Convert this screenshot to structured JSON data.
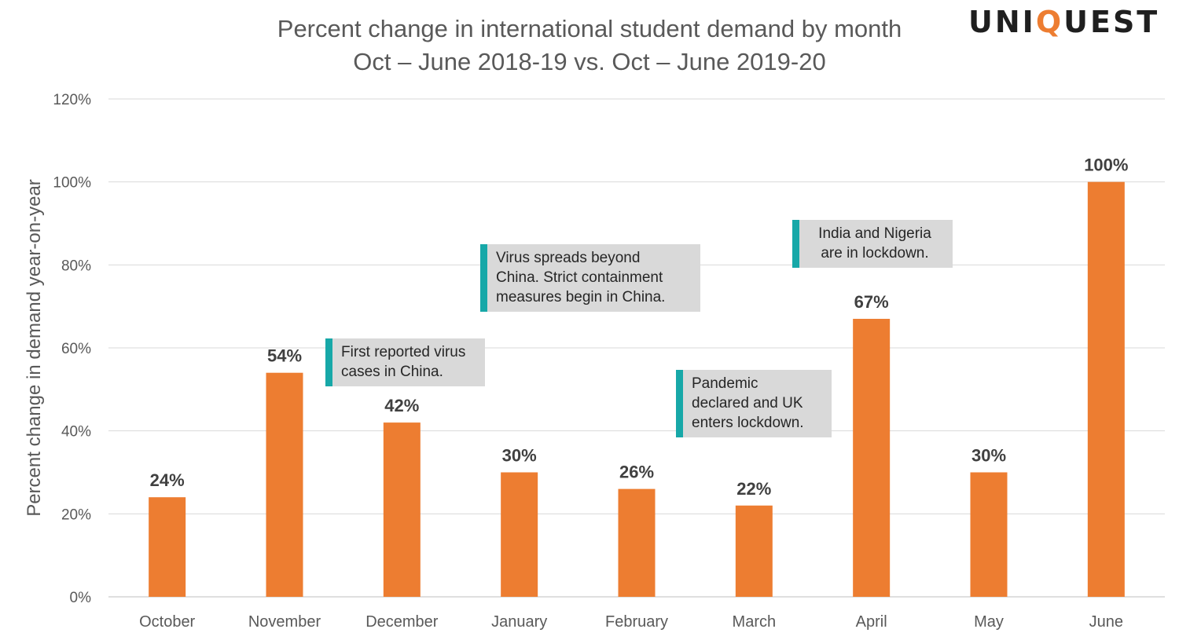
{
  "title_line1": "Percent change in international student demand by month",
  "title_line2": "Oct – June 2018-19 vs. Oct – June 2019-20",
  "logo": {
    "pre": "UNI",
    "q": "Q",
    "post": "UEST"
  },
  "chart_data": {
    "type": "bar",
    "categories": [
      "October",
      "November",
      "December",
      "January",
      "February",
      "March",
      "April",
      "May",
      "June"
    ],
    "values": [
      24,
      54,
      42,
      30,
      26,
      22,
      67,
      30,
      100
    ],
    "data_labels": [
      "24%",
      "54%",
      "42%",
      "30%",
      "26%",
      "22%",
      "67%",
      "30%",
      "100%"
    ],
    "ylabel": "Percent change in demand year-on-year",
    "ylim": [
      0,
      120
    ],
    "yticks": [
      "0%",
      "20%",
      "40%",
      "60%",
      "80%",
      "100%",
      "120%"
    ],
    "grid": true,
    "bar_color": "#ED7D31",
    "annotations": [
      {
        "lines": [
          "First reported virus",
          "cases in China."
        ]
      },
      {
        "lines": [
          "Virus spreads beyond",
          "China. Strict containment",
          "measures begin in China."
        ]
      },
      {
        "lines": [
          "Pandemic",
          "declared and UK",
          "enters lockdown."
        ]
      },
      {
        "lines": [
          "India and Nigeria",
          "are in lockdown."
        ]
      }
    ]
  },
  "colors": {
    "accent": "#17a8a8",
    "bar": "#ED7D31",
    "annotation_bg": "#d9d9d9"
  }
}
